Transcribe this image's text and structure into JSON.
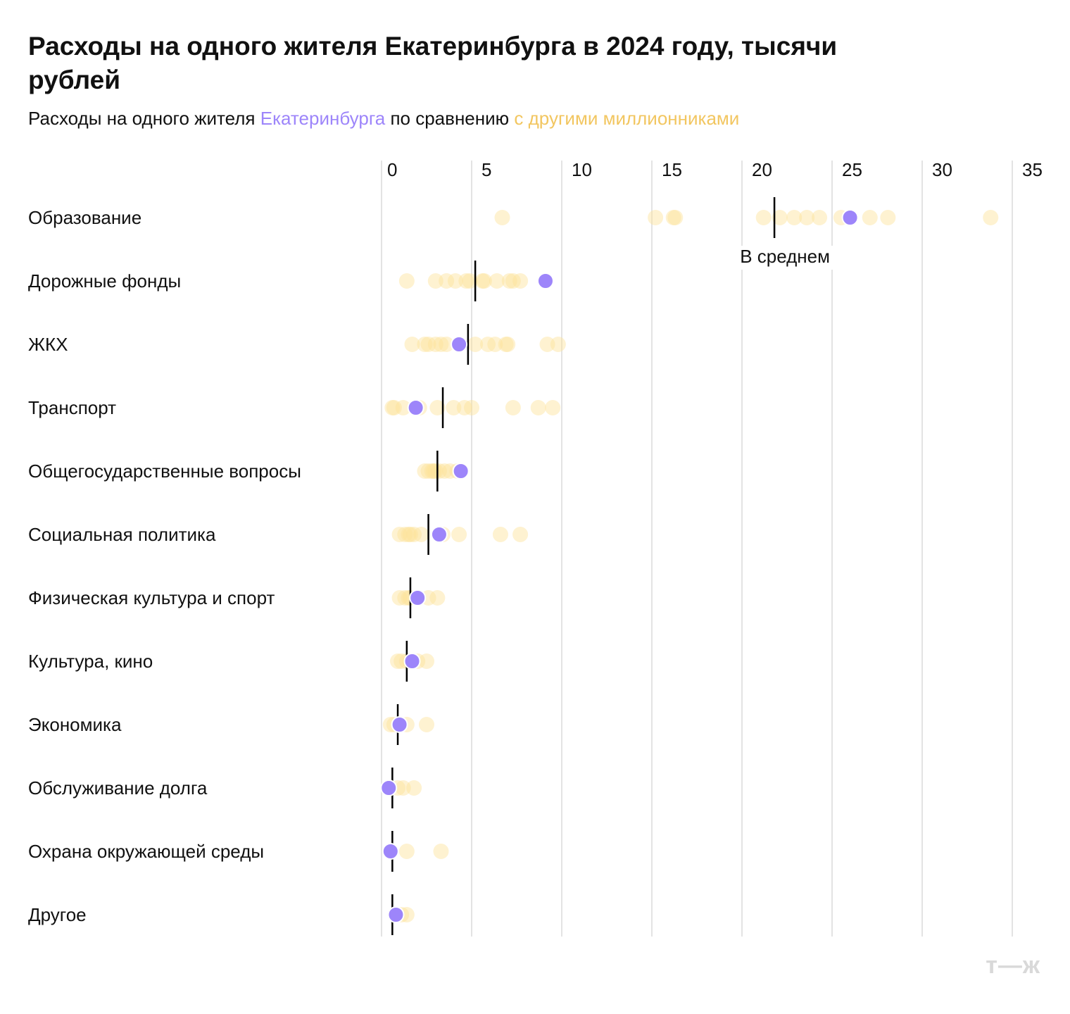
{
  "title": "Расходы на одного жителя Екатеринбурга в 2024 году, тысячи рублей",
  "subtitle": {
    "prefix": "Расходы на одного жителя ",
    "ekb": "Екатеринбурга",
    "middle": " по сравнению ",
    "others": "с другими миллионниками"
  },
  "logo": "т—ж",
  "colors": {
    "ekb": "#9d85fa",
    "others": "#fde29a",
    "mean": "#000000",
    "grid": "#e3e3e3"
  },
  "chart_data": {
    "type": "scatter",
    "orientation": "horizontal dot plot",
    "xlim": [
      0,
      35
    ],
    "xticks": [
      0,
      5,
      10,
      15,
      20,
      25,
      30,
      35
    ],
    "grid": true,
    "mean_label": "В среднем",
    "series": [
      "Екатеринбург",
      "другие миллионники",
      "В среднем"
    ],
    "categories": [
      {
        "label": "Образование",
        "ekb": 26.0,
        "mean": 21.8,
        "others": [
          6.7,
          15.2,
          16.2,
          16.3,
          21.2,
          22.1,
          22.9,
          23.6,
          24.3,
          25.5,
          27.1,
          28.1,
          33.8
        ]
      },
      {
        "label": "Дорожные фонды",
        "ekb": 9.1,
        "mean": 5.2,
        "others": [
          1.4,
          3.0,
          3.6,
          4.1,
          4.7,
          4.9,
          5.6,
          5.7,
          6.4,
          7.1,
          7.3,
          7.7
        ]
      },
      {
        "label": "ЖКХ",
        "ekb": 4.3,
        "mean": 4.8,
        "others": [
          1.7,
          2.4,
          2.6,
          3.0,
          3.3,
          3.6,
          5.2,
          5.9,
          6.3,
          6.9,
          7.0,
          9.2,
          9.8
        ]
      },
      {
        "label": "Транспорт",
        "ekb": 1.9,
        "mean": 3.4,
        "others": [
          0.6,
          0.7,
          1.2,
          2.1,
          3.1,
          4.0,
          4.6,
          5.0,
          7.3,
          8.7,
          9.5
        ]
      },
      {
        "label": "Общегосударственные вопросы",
        "ekb": 4.4,
        "mean": 3.1,
        "others": [
          2.4,
          2.6,
          2.8,
          2.9,
          3.0,
          3.2,
          3.5,
          3.8,
          4.2
        ]
      },
      {
        "label": "Социальная политика",
        "ekb": 3.2,
        "mean": 2.6,
        "others": [
          1.0,
          1.3,
          1.5,
          1.6,
          1.8,
          2.2,
          3.4,
          4.3,
          6.6,
          7.7
        ]
      },
      {
        "label": "Физическая культура и спорт",
        "ekb": 2.0,
        "mean": 1.6,
        "others": [
          1.0,
          1.3,
          1.5,
          1.6,
          2.6,
          3.1
        ]
      },
      {
        "label": "Культура, кино",
        "ekb": 1.7,
        "mean": 1.4,
        "others": [
          0.9,
          1.1,
          1.4,
          1.6,
          2.0,
          2.5
        ]
      },
      {
        "label": "Экономика",
        "ekb": 1.0,
        "mean": 0.9,
        "others": [
          0.5,
          0.7,
          1.4,
          2.5
        ]
      },
      {
        "label": "Обслуживание долга",
        "ekb": 0.4,
        "mean": 0.6,
        "others": [
          0.9,
          1.2,
          1.8
        ]
      },
      {
        "label": "Охрана окружающей среды",
        "ekb": 0.5,
        "mean": 0.6,
        "others": [
          1.4,
          3.3
        ]
      },
      {
        "label": "Другое",
        "ekb": 0.8,
        "mean": 0.6,
        "others": [
          0.8,
          1.1,
          1.4
        ]
      }
    ]
  }
}
